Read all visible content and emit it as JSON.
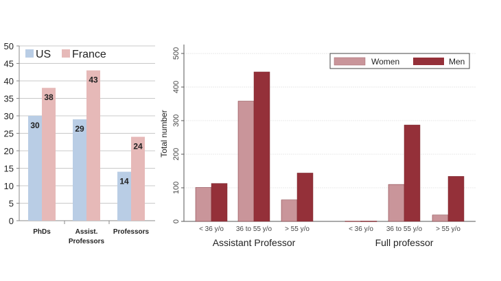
{
  "chart_data": [
    {
      "type": "bar",
      "title": "",
      "categories": [
        "PhDs",
        "Assist. Professors",
        "Professors"
      ],
      "category_lines": [
        [
          "PhDs"
        ],
        [
          "Assist.",
          "Professors"
        ],
        [
          "Professors"
        ]
      ],
      "series": [
        {
          "name": "US",
          "values": [
            30,
            29,
            14
          ],
          "color": "#b9cde5"
        },
        {
          "name": "France",
          "values": [
            38,
            43,
            24
          ],
          "color": "#e6b9b8"
        }
      ],
      "ylim": [
        0,
        50
      ],
      "yticks": [
        0,
        5,
        10,
        15,
        20,
        25,
        30,
        35,
        40,
        45,
        50
      ],
      "grid": true,
      "legend": "top",
      "data_labels": true
    },
    {
      "type": "bar",
      "title": "",
      "ylabel": "Total number",
      "groups": [
        {
          "name": "Assistant Professor",
          "categories": [
            "< 36 y/o",
            "36 to 55 y/o",
            "> 55 y/o"
          ]
        },
        {
          "name": "Full professor",
          "categories": [
            "< 36 y/o",
            "36 to 55 y/o",
            "> 55 y/o"
          ]
        }
      ],
      "series": [
        {
          "name": "Women",
          "values": [
            101,
            358,
            64,
            1,
            110,
            19
          ],
          "color": "#c9959a"
        },
        {
          "name": "Men",
          "values": [
            113,
            445,
            144,
            1,
            287,
            134
          ],
          "color": "#943039"
        }
      ],
      "ylim": [
        0,
        520
      ],
      "yticks": [
        0,
        100,
        200,
        300,
        400,
        500
      ],
      "grid": true,
      "legend": "top-right"
    }
  ]
}
